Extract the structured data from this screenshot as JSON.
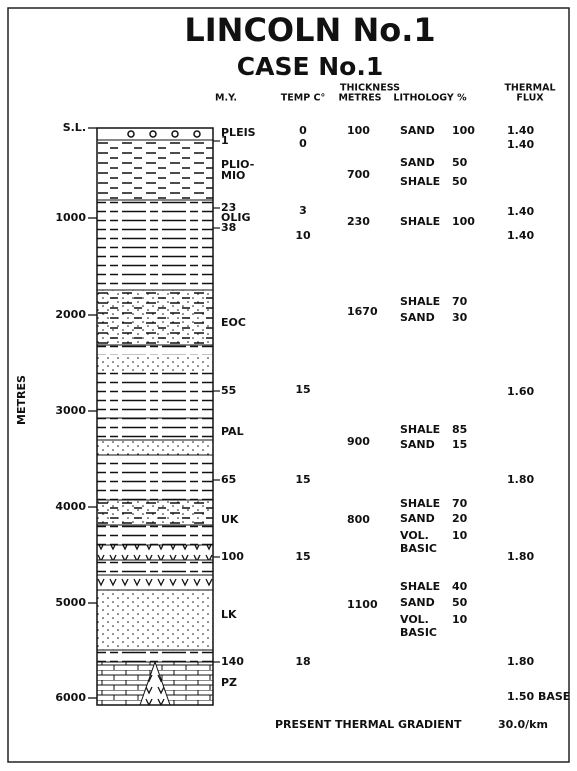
{
  "header": {
    "title": "LINCOLN No.1",
    "subtitle": "CASE No.1"
  },
  "columns": {
    "age": "M.Y.",
    "temp": "TEMP C°",
    "thickness_top": "THICKNESS",
    "thickness": "METRES",
    "lithology": "LITHOLOGY %",
    "flux_top": "THERMAL",
    "flux": "FLUX"
  },
  "depth_axis": {
    "label": "METRES",
    "ticks": [
      "S.L.",
      "1000",
      "2000",
      "3000",
      "4000",
      "5000",
      "6000"
    ]
  },
  "ages": [
    "PLEIS",
    "1",
    "PLIO-",
    "MIO",
    "23",
    "OLIG",
    "38",
    "EOC",
    "55",
    "PAL",
    "65",
    "UK",
    "100",
    "LK",
    "140",
    "PZ"
  ],
  "temps": [
    "0",
    "0",
    "3",
    "10",
    "15",
    "15",
    "15",
    "18"
  ],
  "thicknesses": [
    "100",
    "700",
    "230",
    "1670",
    "900",
    "800",
    "1100"
  ],
  "lithology": [
    {
      "name": [
        "SAND"
      ],
      "pct": "100"
    },
    {
      "name": [
        "SAND"
      ],
      "pct": "50"
    },
    {
      "name": [
        "SHALE"
      ],
      "pct": "50"
    },
    {
      "name": [
        "SHALE"
      ],
      "pct": "100"
    },
    {
      "name": [
        "SHALE"
      ],
      "pct": "70"
    },
    {
      "name": [
        "SAND"
      ],
      "pct": "30"
    },
    {
      "name": [
        "SHALE"
      ],
      "pct": "85"
    },
    {
      "name": [
        "SAND"
      ],
      "pct": "15"
    },
    {
      "name": [
        "SHALE"
      ],
      "pct": "70"
    },
    {
      "name": [
        "SAND"
      ],
      "pct": "20"
    },
    {
      "name": [
        "VOL.",
        "BASIC"
      ],
      "pct": "10"
    },
    {
      "name": [
        "SHALE"
      ],
      "pct": "40"
    },
    {
      "name": [
        "SAND"
      ],
      "pct": "50"
    },
    {
      "name": [
        "VOL.",
        "BASIC"
      ],
      "pct": "10"
    }
  ],
  "flux": [
    "1.40",
    "1.40",
    "1.40",
    "1.40",
    "1.60",
    "1.80",
    "1.80",
    "1.80",
    "1.50 BASE"
  ],
  "footer": {
    "label": "PRESENT THERMAL GRADIENT",
    "value": "30.0/km"
  }
}
